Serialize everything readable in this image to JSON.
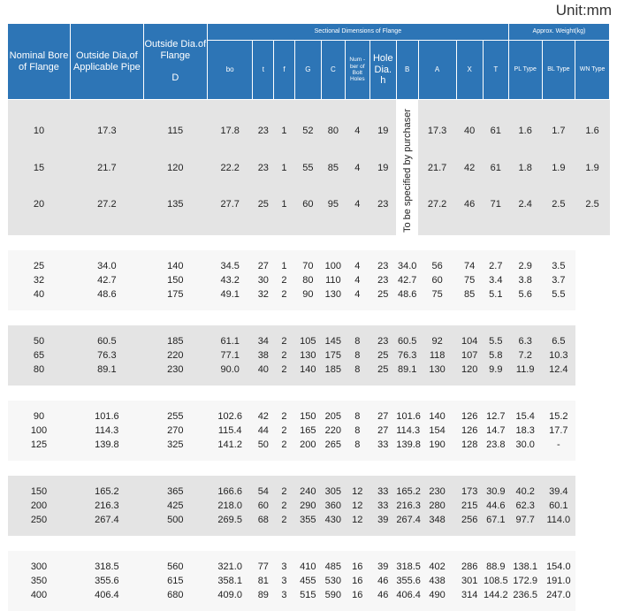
{
  "unit": "Unit:mm",
  "headers": {
    "nominal_bore": "Nominal Bore of Flange",
    "outside_dia_pipe": "Outside Dia,of Applicable Pipe",
    "outside_dia_flange": "Outside Dia.of Flange",
    "outside_dia_flange_sym": "D",
    "sectional": "Sectional Dimensions of Flange",
    "approx_weight": "Approx. Weight(kg)",
    "bo": "bo",
    "t": "t",
    "f": "f",
    "G": "G",
    "C": "C",
    "num_holes": "Num -ber of Bolt Holes",
    "hole_dia": "Hole Dia.",
    "hole_dia_sym": "h",
    "B": "B",
    "A": "A",
    "X": "X",
    "T": "T",
    "pl": "PL Type",
    "bl": "BL Type",
    "wn": "WN Type"
  },
  "b_note": "To be specified by purchaser",
  "rows": [
    [
      "10",
      "17.3",
      "115",
      "17.8",
      "23",
      "1",
      "52",
      "80",
      "4",
      "19",
      "17.3",
      "40",
      "61",
      "1.6",
      "1.7",
      "1.6"
    ],
    [
      "15",
      "21.7",
      "120",
      "22.2",
      "23",
      "1",
      "55",
      "85",
      "4",
      "19",
      "21.7",
      "42",
      "61",
      "1.8",
      "1.9",
      "1.9"
    ],
    [
      "20",
      "27.2",
      "135",
      "27.7",
      "25",
      "1",
      "60",
      "95",
      "4",
      "23",
      "27.2",
      "46",
      "71",
      "2.4",
      "2.5",
      "2.5"
    ],
    [
      "25",
      "34.0",
      "140",
      "34.5",
      "27",
      "1",
      "70",
      "100",
      "4",
      "23",
      "34.0",
      "56",
      "74",
      "2.7",
      "2.9",
      "3.5"
    ],
    [
      "32",
      "42.7",
      "150",
      "43.2",
      "30",
      "2",
      "80",
      "110",
      "4",
      "23",
      "42.7",
      "60",
      "75",
      "3.4",
      "3.8",
      "3.7"
    ],
    [
      "40",
      "48.6",
      "175",
      "49.1",
      "32",
      "2",
      "90",
      "130",
      "4",
      "25",
      "48.6",
      "75",
      "85",
      "5.1",
      "5.6",
      "5.5"
    ],
    [
      "50",
      "60.5",
      "185",
      "61.1",
      "34",
      "2",
      "105",
      "145",
      "8",
      "23",
      "60.5",
      "92",
      "104",
      "5.5",
      "6.3",
      "6.5"
    ],
    [
      "65",
      "76.3",
      "220",
      "77.1",
      "38",
      "2",
      "130",
      "175",
      "8",
      "25",
      "76.3",
      "118",
      "107",
      "5.8",
      "7.2",
      "10.3"
    ],
    [
      "80",
      "89.1",
      "230",
      "90.0",
      "40",
      "2",
      "140",
      "185",
      "8",
      "25",
      "89.1",
      "130",
      "120",
      "9.9",
      "11.9",
      "12.4"
    ],
    [
      "90",
      "101.6",
      "255",
      "102.6",
      "42",
      "2",
      "150",
      "205",
      "8",
      "27",
      "101.6",
      "140",
      "126",
      "12.7",
      "15.4",
      "15.2"
    ],
    [
      "100",
      "114.3",
      "270",
      "115.4",
      "44",
      "2",
      "165",
      "220",
      "8",
      "27",
      "114.3",
      "154",
      "126",
      "14.7",
      "18.3",
      "17.7"
    ],
    [
      "125",
      "139.8",
      "325",
      "141.2",
      "50",
      "2",
      "200",
      "265",
      "8",
      "33",
      "139.8",
      "190",
      "128",
      "23.8",
      "30.0",
      "-"
    ],
    [
      "150",
      "165.2",
      "365",
      "166.6",
      "54",
      "2",
      "240",
      "305",
      "12",
      "33",
      "165.2",
      "230",
      "173",
      "30.9",
      "40.2",
      "39.4"
    ],
    [
      "200",
      "216.3",
      "425",
      "218.0",
      "60",
      "2",
      "290",
      "360",
      "12",
      "33",
      "216.3",
      "280",
      "215",
      "44.6",
      "62.3",
      "60.1"
    ],
    [
      "250",
      "267.4",
      "500",
      "269.5",
      "68",
      "2",
      "355",
      "430",
      "12",
      "39",
      "267.4",
      "348",
      "256",
      "67.1",
      "97.7",
      "114.0"
    ],
    [
      "300",
      "318.5",
      "560",
      "321.0",
      "77",
      "3",
      "410",
      "485",
      "16",
      "39",
      "318.5",
      "402",
      "286",
      "88.9",
      "138.1",
      "154.0"
    ],
    [
      "350",
      "355.6",
      "615",
      "358.1",
      "81",
      "3",
      "455",
      "530",
      "16",
      "46",
      "355.6",
      "438",
      "301",
      "108.5",
      "172.9",
      "191.0"
    ],
    [
      "400",
      "406.4",
      "680",
      "409.0",
      "89",
      "3",
      "515",
      "590",
      "16",
      "46",
      "406.4",
      "490",
      "314",
      "144.2",
      "236.5",
      "247.0"
    ]
  ]
}
